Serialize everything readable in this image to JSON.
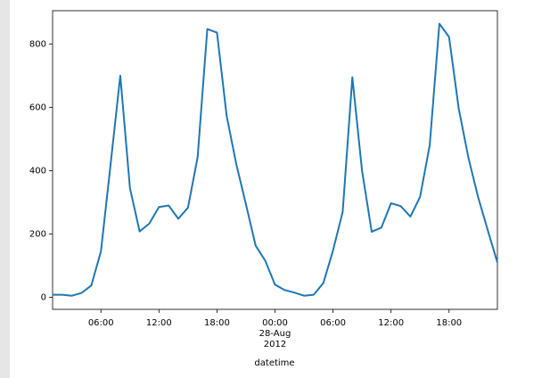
{
  "chart_data": {
    "type": "line",
    "x_label": "datetime",
    "x": [
      1,
      2,
      3,
      4,
      5,
      6,
      7,
      8,
      9,
      10,
      11,
      12,
      13,
      14,
      15,
      16,
      17,
      18,
      19,
      20,
      21,
      22,
      23,
      24,
      25,
      26,
      27,
      28,
      29,
      30,
      31,
      32,
      33,
      34,
      35,
      36,
      37,
      38,
      39,
      40,
      41,
      42,
      43,
      44,
      45,
      46,
      47
    ],
    "series": [
      {
        "color": "#1f77b4",
        "values": [
          8,
          8,
          5,
          14,
          37,
          145,
          420,
          700,
          345,
          208,
          233,
          285,
          290,
          248,
          283,
          443,
          847,
          836,
          573,
          420,
          293,
          163,
          115,
          40,
          23,
          15,
          5,
          8,
          45,
          148,
          270,
          695,
          400,
          207,
          220,
          297,
          288,
          255,
          317,
          480,
          864,
          822,
          596,
          441,
          317,
          212,
          110
        ]
      }
    ],
    "xlim": [
      1,
      47
    ],
    "xticks": [
      {
        "value": 6,
        "label": "06:00"
      },
      {
        "value": 12,
        "label": "12:00"
      },
      {
        "value": 18,
        "label": "18:00"
      },
      {
        "value": 24,
        "label": "00:00\n28-Aug\n2012"
      },
      {
        "value": 30,
        "label": "06:00"
      },
      {
        "value": 36,
        "label": "12:00"
      },
      {
        "value": 42,
        "label": "18:00"
      }
    ],
    "ylim": [
      -38,
      905
    ],
    "yticks": [
      0,
      200,
      400,
      600,
      800
    ]
  }
}
